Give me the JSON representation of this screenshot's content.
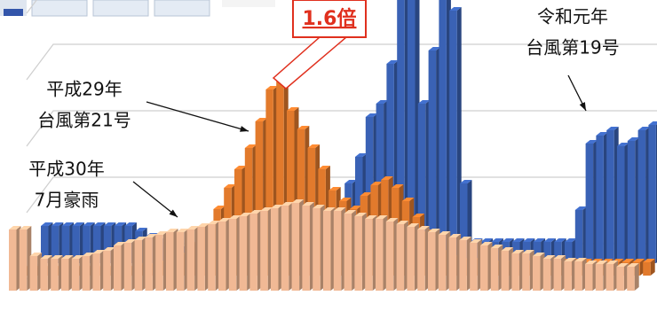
{
  "chart_data": {
    "type": "bar3d",
    "categories": [
      null,
      null,
      null,
      null,
      null,
      null,
      null,
      null,
      null,
      null,
      null,
      null,
      null,
      null,
      null,
      null,
      null,
      null,
      null,
      null,
      null,
      null,
      null,
      null,
      null,
      null,
      null,
      null,
      null,
      null,
      null,
      null,
      null,
      null,
      null,
      null,
      null,
      null,
      null,
      null,
      null,
      null,
      null,
      null,
      null,
      null,
      null,
      null,
      null,
      null,
      null,
      null,
      null,
      null,
      null,
      null,
      null,
      null,
      null,
      null
    ],
    "ylim": [
      0,
      100
    ],
    "yticks": [
      0,
      25,
      50,
      75,
      100
    ],
    "grid": true,
    "series": [
      {
        "color": "#3a62b5",
        "values": [
          14,
          14,
          14,
          14,
          14,
          14,
          14,
          14,
          14,
          12,
          10,
          8,
          6,
          5,
          5,
          5,
          5,
          5,
          5,
          5,
          5,
          5,
          5,
          5,
          5,
          5,
          5,
          5,
          5,
          30,
          40,
          55,
          60,
          75,
          100,
          100,
          60,
          80,
          100,
          95,
          30,
          8,
          8,
          8,
          8,
          8,
          8,
          8,
          8,
          8,
          8,
          20,
          45,
          48,
          50,
          44,
          46,
          50,
          52,
          55
        ]
      },
      {
        "color": "#e27a2c",
        "values": [
          3,
          3,
          3,
          3,
          3,
          3,
          3,
          3,
          3,
          3,
          3,
          4,
          4,
          5,
          6,
          8,
          12,
          18,
          25,
          33,
          40,
          48,
          58,
          70,
          74,
          62,
          55,
          48,
          40,
          32,
          28,
          25,
          30,
          34,
          36,
          33,
          28,
          22,
          16,
          12,
          9,
          7,
          6,
          6,
          5,
          5,
          5,
          5,
          5,
          5,
          5,
          5,
          5,
          5,
          5,
          5,
          5,
          5,
          5,
          5
        ]
      },
      {
        "color": "#f1b995",
        "values": [
          23,
          23,
          13,
          12,
          12,
          12,
          12,
          13,
          14,
          15,
          17,
          18,
          19,
          20,
          21,
          22,
          22,
          23,
          24,
          25,
          26,
          27,
          28,
          29,
          30,
          31,
          32,
          33,
          32,
          31,
          30,
          30,
          29,
          28,
          27,
          27,
          26,
          25,
          24,
          23,
          22,
          21,
          20,
          19,
          18,
          17,
          16,
          15,
          14,
          14,
          13,
          12,
          12,
          11,
          11,
          10,
          10,
          10,
          9,
          9
        ]
      }
    ],
    "annotations": [
      {
        "lines": [
          "平成29年",
          "台風第21号"
        ]
      },
      {
        "lines": [
          "平成30年",
          "7月豪雨"
        ]
      },
      {
        "lines": [
          "令和元年",
          "台風第19号"
        ]
      },
      {
        "lines": [
          "1.6倍"
        ]
      }
    ]
  }
}
